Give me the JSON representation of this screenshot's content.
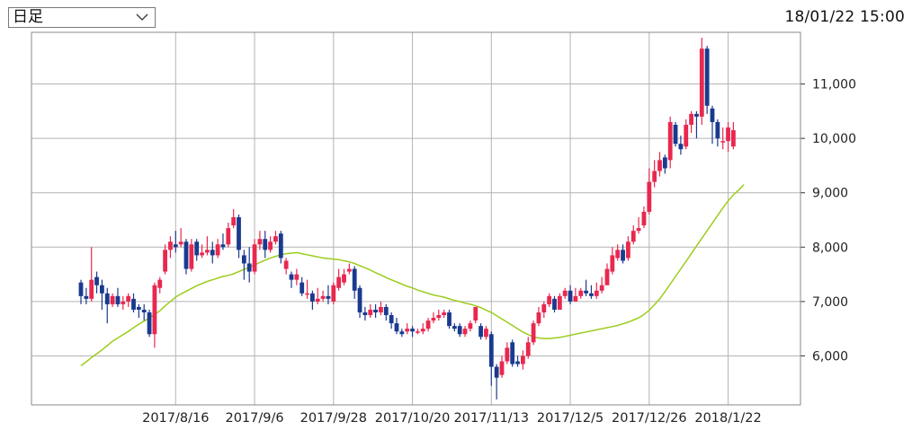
{
  "toolbar": {
    "period_label": "日足",
    "chevron_icon": "chevron-down-icon",
    "timestamp": "18/01/22 15:00"
  },
  "colors": {
    "up": "#e8284f",
    "down": "#1a3a8f",
    "ma": "#9ccc1c",
    "grid": "#b4b4b4"
  },
  "chart_data": {
    "type": "candlestick",
    "title": "",
    "xlabel": "",
    "ylabel": "",
    "ylim": [
      5100,
      11950
    ],
    "y_ticks": [
      {
        "value": 6000,
        "label": "6,000"
      },
      {
        "value": 7000,
        "label": "7,000"
      },
      {
        "value": 8000,
        "label": "8,000"
      },
      {
        "value": 9000,
        "label": "9,000"
      },
      {
        "value": 10000,
        "label": "10,000"
      },
      {
        "value": 11000,
        "label": "11,000"
      }
    ],
    "x_ticks": [
      {
        "index": 18,
        "label": "2017/8/16"
      },
      {
        "index": 33,
        "label": "2017/9/6"
      },
      {
        "index": 48,
        "label": "2017/9/28"
      },
      {
        "index": 63,
        "label": "2017/10/20"
      },
      {
        "index": 78,
        "label": "2017/11/13"
      },
      {
        "index": 93,
        "label": "2017/12/5"
      },
      {
        "index": 108,
        "label": "2017/12/26"
      },
      {
        "index": 123,
        "label": "2018/1/22"
      }
    ],
    "grid": true,
    "series": [
      {
        "values": [
          [
            7350,
            7100,
            7400,
            6950
          ],
          [
            7100,
            7050,
            7250,
            6950
          ],
          [
            7050,
            7400,
            8000,
            7000
          ],
          [
            7450,
            7300,
            7550,
            7150
          ],
          [
            7300,
            7150,
            7400,
            6850
          ],
          [
            7150,
            6950,
            7250,
            6600
          ],
          [
            6950,
            7100,
            7150,
            6900
          ],
          [
            7100,
            6950,
            7250,
            6900
          ],
          [
            6950,
            7000,
            7100,
            6850
          ],
          [
            7000,
            7100,
            7150,
            6900
          ],
          [
            7050,
            6850,
            7150,
            6800
          ],
          [
            6900,
            6850,
            6950,
            6700
          ],
          [
            6850,
            6800,
            6950,
            6650
          ],
          [
            6800,
            6400,
            6850,
            6350
          ],
          [
            6400,
            7300,
            7350,
            6150
          ],
          [
            7250,
            7400,
            7450,
            7150
          ],
          [
            7550,
            7950,
            8050,
            7500
          ],
          [
            7950,
            8100,
            8200,
            7800
          ],
          [
            8050,
            8000,
            8300,
            7900
          ],
          [
            8050,
            8100,
            8350,
            8000
          ],
          [
            8100,
            7600,
            8150,
            7500
          ],
          [
            7600,
            8050,
            8150,
            7550
          ],
          [
            8100,
            7850,
            8150,
            7750
          ],
          [
            7850,
            7900,
            8050,
            7800
          ],
          [
            7900,
            7950,
            8200,
            7850
          ],
          [
            7950,
            7850,
            8100,
            7700
          ],
          [
            7850,
            8050,
            8150,
            7800
          ],
          [
            8050,
            8000,
            8250,
            7950
          ],
          [
            8050,
            8350,
            8450,
            8000
          ],
          [
            8400,
            8550,
            8700,
            8350
          ],
          [
            8550,
            7950,
            8600,
            7800
          ],
          [
            7850,
            7700,
            7950,
            7400
          ],
          [
            7700,
            7550,
            8000,
            7350
          ],
          [
            7550,
            8050,
            8150,
            7500
          ],
          [
            8050,
            8150,
            8300,
            7950
          ],
          [
            8150,
            7950,
            8300,
            7800
          ],
          [
            7950,
            8100,
            8200,
            7900
          ],
          [
            8100,
            8200,
            8300,
            8050
          ],
          [
            8250,
            7800,
            8300,
            7700
          ],
          [
            7600,
            7750,
            7800,
            7500
          ],
          [
            7500,
            7400,
            7550,
            7250
          ],
          [
            7400,
            7500,
            7600,
            7300
          ],
          [
            7350,
            7150,
            7450,
            7100
          ],
          [
            7150,
            7150,
            7400,
            7050
          ],
          [
            7150,
            7000,
            7200,
            6850
          ],
          [
            7000,
            7050,
            7250,
            6950
          ],
          [
            7050,
            7100,
            7200,
            7000
          ],
          [
            7100,
            7050,
            7300,
            6950
          ],
          [
            7000,
            7300,
            7350,
            6950
          ],
          [
            7250,
            7450,
            7600,
            7200
          ],
          [
            7350,
            7500,
            7600,
            7300
          ],
          [
            7550,
            7600,
            7700,
            7500
          ],
          [
            7600,
            7200,
            7650,
            7050
          ],
          [
            7250,
            6800,
            7300,
            6700
          ],
          [
            6800,
            6750,
            6900,
            6650
          ],
          [
            6750,
            6850,
            6950,
            6700
          ],
          [
            6850,
            6800,
            6950,
            6700
          ],
          [
            6800,
            6900,
            7000,
            6750
          ],
          [
            6900,
            6750,
            6950,
            6650
          ],
          [
            6750,
            6600,
            6800,
            6500
          ],
          [
            6600,
            6450,
            6700,
            6400
          ],
          [
            6450,
            6400,
            6500,
            6350
          ],
          [
            6450,
            6500,
            6600,
            6400
          ],
          [
            6500,
            6450,
            6550,
            6350
          ],
          [
            6450,
            6450,
            6500,
            6400
          ],
          [
            6450,
            6500,
            6600,
            6400
          ],
          [
            6500,
            6650,
            6700,
            6450
          ],
          [
            6650,
            6700,
            6800,
            6600
          ],
          [
            6700,
            6750,
            6850,
            6650
          ],
          [
            6750,
            6800,
            6850,
            6700
          ],
          [
            6800,
            6550,
            6850,
            6500
          ],
          [
            6550,
            6500,
            6600,
            6450
          ],
          [
            6550,
            6400,
            6600,
            6350
          ],
          [
            6400,
            6500,
            6550,
            6350
          ],
          [
            6500,
            6600,
            6650,
            6450
          ],
          [
            6650,
            6900,
            6900,
            6600
          ],
          [
            6550,
            6350,
            6600,
            6300
          ],
          [
            6350,
            6500,
            6550,
            6300
          ],
          [
            6400,
            5800,
            6450,
            5450
          ],
          [
            5800,
            5600,
            5850,
            5200
          ],
          [
            5650,
            5900,
            6000,
            5600
          ],
          [
            5900,
            6150,
            6250,
            5850
          ],
          [
            6250,
            5850,
            6300,
            5800
          ],
          [
            5900,
            5850,
            6000,
            5800
          ],
          [
            5850,
            6000,
            6100,
            5750
          ],
          [
            6000,
            6250,
            6350,
            5950
          ],
          [
            6250,
            6600,
            6650,
            6200
          ],
          [
            6600,
            6800,
            6900,
            6550
          ],
          [
            6800,
            6950,
            7000,
            6700
          ],
          [
            6950,
            7100,
            7150,
            6900
          ],
          [
            7050,
            6850,
            7100,
            6800
          ],
          [
            6850,
            7100,
            7150,
            6850
          ],
          [
            7100,
            7200,
            7250,
            7050
          ],
          [
            7200,
            7000,
            7300,
            6950
          ],
          [
            7000,
            7100,
            7250,
            7000
          ],
          [
            7100,
            7200,
            7250,
            7050
          ],
          [
            7200,
            7150,
            7400,
            7100
          ],
          [
            7150,
            7100,
            7300,
            7050
          ],
          [
            7100,
            7200,
            7350,
            7050
          ],
          [
            7200,
            7300,
            7450,
            7150
          ],
          [
            7300,
            7600,
            7700,
            7300
          ],
          [
            7550,
            7850,
            8000,
            7500
          ],
          [
            7800,
            7950,
            8050,
            7750
          ],
          [
            7950,
            7750,
            8050,
            7700
          ],
          [
            7800,
            8100,
            8200,
            7750
          ],
          [
            8100,
            8300,
            8400,
            8050
          ],
          [
            8300,
            8350,
            8550,
            8250
          ],
          [
            8400,
            8650,
            8750,
            8350
          ],
          [
            8650,
            9200,
            9450,
            8600
          ],
          [
            9200,
            9400,
            9600,
            9100
          ],
          [
            9400,
            9600,
            9750,
            9300
          ],
          [
            9650,
            9450,
            9700,
            9350
          ],
          [
            9600,
            10300,
            10400,
            9450
          ],
          [
            10250,
            9900,
            10300,
            9850
          ],
          [
            9900,
            9800,
            10050,
            9700
          ],
          [
            9850,
            10250,
            10350,
            9800
          ],
          [
            10250,
            10450,
            10500,
            10100
          ],
          [
            10450,
            10400,
            10500,
            10000
          ],
          [
            10400,
            11650,
            11850,
            10250
          ],
          [
            11650,
            10600,
            11700,
            10450
          ],
          [
            10550,
            10300,
            10600,
            9900
          ],
          [
            10300,
            10000,
            10350,
            9850
          ],
          [
            9950,
            9950,
            10200,
            9800
          ],
          [
            9950,
            10200,
            10300,
            9750
          ],
          [
            9850,
            10150,
            10300,
            9800
          ]
        ]
      },
      {
        "values": [
          5820,
          5890,
          5970,
          6040,
          6110,
          6190,
          6270,
          6330,
          6390,
          6450,
          6520,
          6580,
          6640,
          6700,
          6760,
          6830,
          6920,
          7000,
          7080,
          7140,
          7190,
          7240,
          7290,
          7330,
          7370,
          7400,
          7430,
          7460,
          7480,
          7510,
          7550,
          7590,
          7630,
          7670,
          7720,
          7760,
          7800,
          7830,
          7860,
          7880,
          7890,
          7900,
          7880,
          7860,
          7840,
          7820,
          7800,
          7790,
          7780,
          7770,
          7750,
          7730,
          7700,
          7660,
          7620,
          7580,
          7530,
          7490,
          7440,
          7400,
          7360,
          7320,
          7280,
          7250,
          7210,
          7180,
          7150,
          7120,
          7100,
          7080,
          7050,
          7020,
          7000,
          6970,
          6950,
          6920,
          6890,
          6840,
          6800,
          6740,
          6680,
          6620,
          6560,
          6500,
          6440,
          6390,
          6350,
          6330,
          6320,
          6320,
          6330,
          6340,
          6360,
          6380,
          6400,
          6420,
          6440,
          6460,
          6480,
          6500,
          6520,
          6540,
          6560,
          6590,
          6620,
          6660,
          6700,
          6760,
          6840,
          6940,
          7050,
          7180,
          7320,
          7460,
          7600,
          7740,
          7880,
          8020,
          8160,
          8300,
          8440,
          8580,
          8720,
          8850,
          8960,
          9050,
          9150
        ]
      }
    ]
  }
}
